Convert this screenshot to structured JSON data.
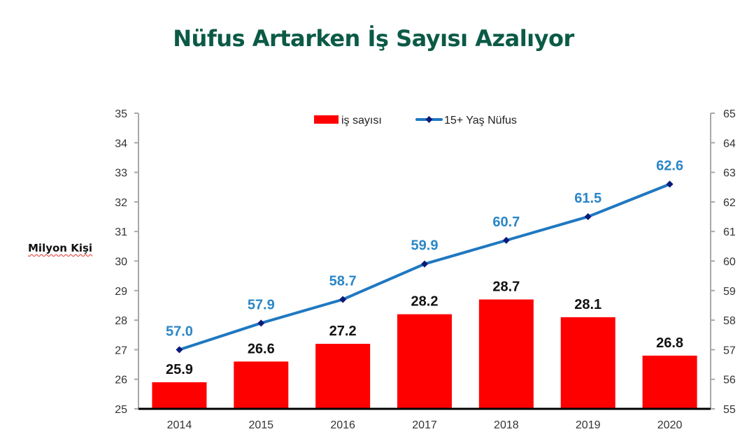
{
  "title": "Nüfus Artarken İş Sayısı Azalıyor",
  "y_unit_label": "Milyon Kişi",
  "legend": {
    "bar": "iş sayısı",
    "line": "15+ Yaş Nüfus"
  },
  "colors": {
    "title": "#0b5a46",
    "bar": "#ff0000",
    "line": "#1f78c1",
    "marker": "#0a1a7a",
    "line_label": "#2a86c8"
  },
  "chart_data": {
    "type": "bar+line",
    "title": "Nüfus Artarken İş Sayısı Azalıyor",
    "categories": [
      "2014",
      "2015",
      "2016",
      "2017",
      "2018",
      "2019",
      "2020"
    ],
    "series": [
      {
        "name": "iş sayısı",
        "type": "bar",
        "axis": "left",
        "values": [
          25.9,
          26.6,
          27.2,
          28.2,
          28.7,
          28.1,
          26.8
        ]
      },
      {
        "name": "15+ Yaş Nüfus",
        "type": "line",
        "axis": "right",
        "values": [
          57.0,
          57.9,
          58.7,
          59.9,
          60.7,
          61.5,
          62.6
        ]
      }
    ],
    "bar_labels": [
      "25.9",
      "26.6",
      "27.2",
      "28.2",
      "28.7",
      "28.1",
      "26.8"
    ],
    "line_labels": [
      "57.0",
      "57.9",
      "58.7",
      "59.9",
      "60.7",
      "61.5",
      "62.6"
    ],
    "xlabel": "",
    "ylabel": "Milyon Kişi",
    "ylim_left": [
      25,
      35
    ],
    "ylim_right": [
      55,
      65
    ],
    "left_ticks": [
      "35",
      "34",
      "33",
      "32",
      "31",
      "30",
      "29",
      "28",
      "27",
      "26",
      "25"
    ],
    "right_ticks": [
      "65",
      "64",
      "63",
      "62",
      "61",
      "60",
      "59",
      "58",
      "57",
      "56",
      "55"
    ],
    "grid": false,
    "legend_position": "top-center"
  }
}
